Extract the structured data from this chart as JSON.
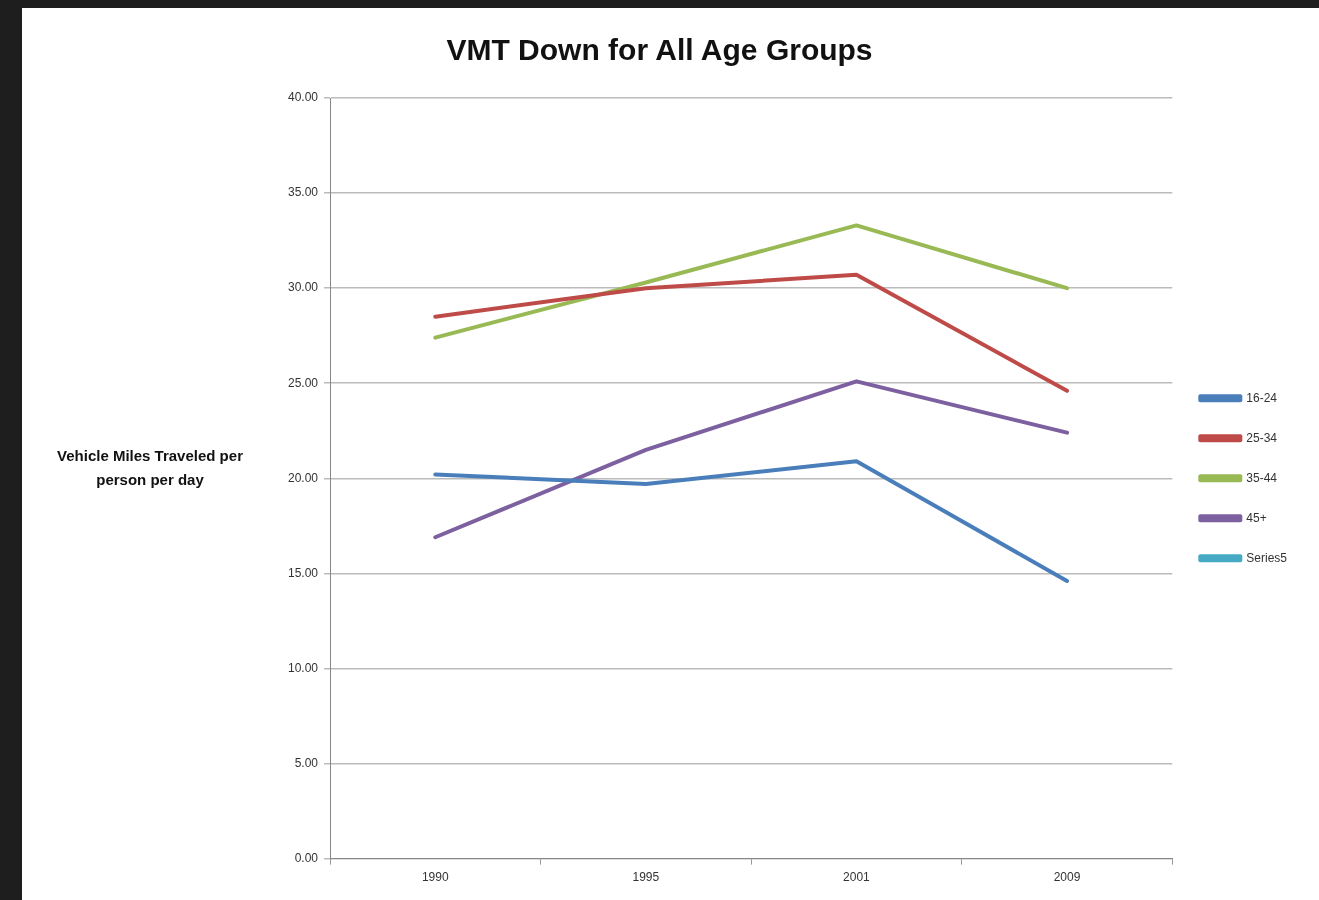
{
  "chart_data": {
    "type": "line",
    "title": "VMT Down for All Age Groups",
    "ylabel": "Vehicle Miles Traveled per person per day",
    "categories": [
      "1990",
      "1995",
      "2001",
      "2009"
    ],
    "series": [
      {
        "name": "16-24",
        "color": "#4a7ebb",
        "values": [
          20.2,
          19.7,
          20.9,
          14.6
        ]
      },
      {
        "name": "25-34",
        "color": "#be4b48",
        "values": [
          28.5,
          30.0,
          30.7,
          24.6
        ]
      },
      {
        "name": "35-44",
        "color": "#98b954",
        "values": [
          27.4,
          30.3,
          33.3,
          30.0
        ]
      },
      {
        "name": "45+",
        "color": "#7d60a0",
        "values": [
          16.9,
          21.5,
          25.1,
          22.4
        ]
      },
      {
        "name": "Series5",
        "color": "#46aac5",
        "values": [
          null,
          null,
          null,
          null
        ]
      }
    ],
    "ylim": [
      0,
      40
    ],
    "yticks": [
      {
        "value": 0,
        "label": "0.00"
      },
      {
        "value": 5,
        "label": "5.00"
      },
      {
        "value": 10,
        "label": "10.00"
      },
      {
        "value": 15,
        "label": "15.00"
      },
      {
        "value": 20,
        "label": "20.00"
      },
      {
        "value": 25,
        "label": "25.00"
      },
      {
        "value": 30,
        "label": "30.00"
      },
      {
        "value": 35,
        "label": "35.00"
      },
      {
        "value": 40,
        "label": "40.00"
      }
    ],
    "grid": "y",
    "legend": "right",
    "marker": "none"
  }
}
